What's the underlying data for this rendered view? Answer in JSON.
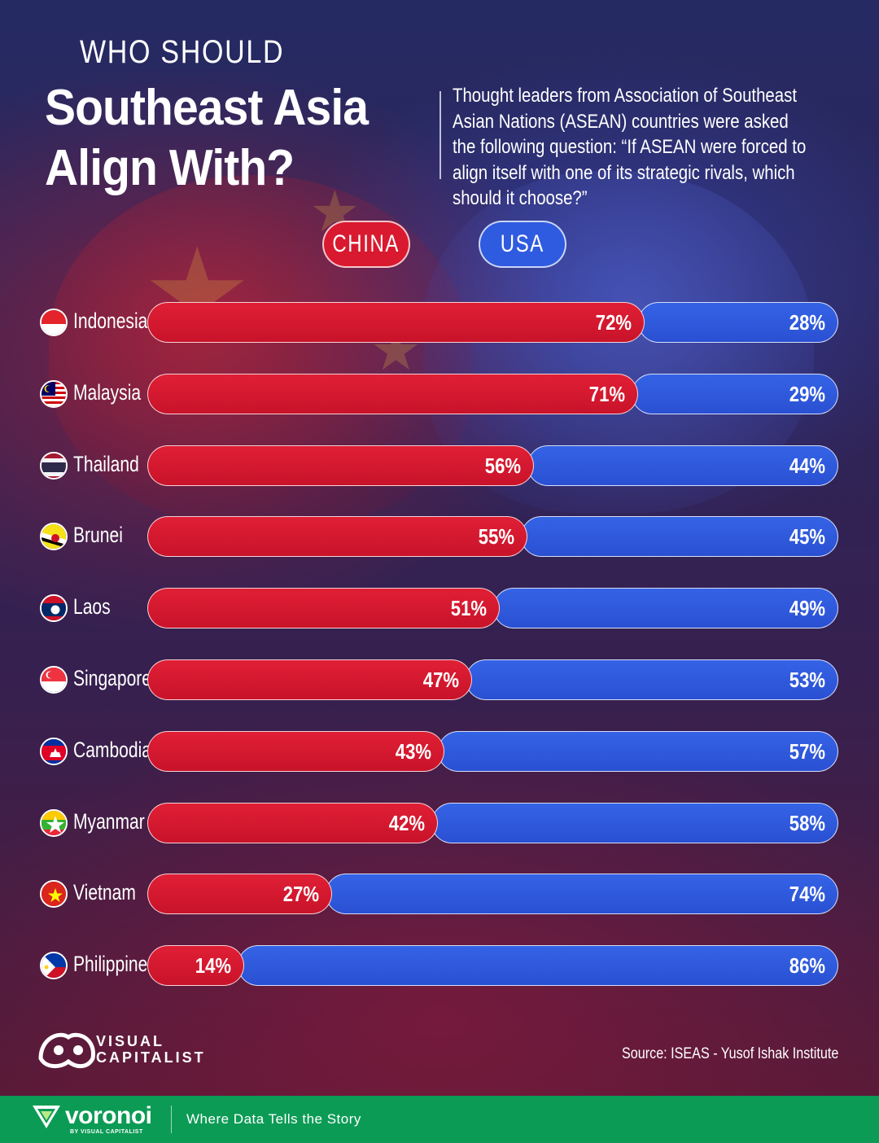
{
  "title": {
    "small": "WHO SHOULD",
    "big": "Southeast Asia Align With?"
  },
  "description": "Thought leaders from Association of Southeast Asian Nations (ASEAN) countries were asked the following question: “If ASEAN were forced to align itself with one of its strategic rivals, which should it choose?”",
  "legend": {
    "china_label": "CHINA",
    "usa_label": "USA"
  },
  "colors": {
    "china": "#d9192f",
    "usa": "#2f5be0",
    "footer": "#0c9b55"
  },
  "chart_data": {
    "type": "bar",
    "orientation": "horizontal-stacked",
    "categories": [
      "Indonesia",
      "Malaysia",
      "Thailand",
      "Brunei",
      "Laos",
      "Singapore",
      "Cambodia",
      "Myanmar",
      "Vietnam",
      "Philippines"
    ],
    "series": [
      {
        "name": "CHINA",
        "values": [
          72,
          71,
          56,
          55,
          51,
          47,
          43,
          42,
          27,
          14
        ],
        "labels": [
          "72%",
          "71%",
          "56%",
          "55%",
          "51%",
          "47%",
          "43%",
          "42%",
          "27%",
          "14%"
        ]
      },
      {
        "name": "USA",
        "values": [
          28,
          29,
          44,
          45,
          49,
          53,
          57,
          58,
          74,
          86
        ],
        "labels": [
          "28%",
          "29%",
          "44%",
          "45%",
          "49%",
          "53%",
          "57%",
          "58%",
          "74%",
          "86%"
        ]
      }
    ],
    "unit": "%",
    "xlim": [
      0,
      100
    ],
    "legend_position": "top-center",
    "grid": false
  },
  "flags": [
    "indonesia-flag-icon",
    "malaysia-flag-icon",
    "thailand-flag-icon",
    "brunei-flag-icon",
    "laos-flag-icon",
    "singapore-flag-icon",
    "cambodia-flag-icon",
    "myanmar-flag-icon",
    "vietnam-flag-icon",
    "philippines-flag-icon"
  ],
  "brand": {
    "logo_line1": "VISUAL",
    "logo_line2": "CAPITALIST",
    "source": "Source: ISEAS - Yusof Ishak Institute"
  },
  "footer": {
    "voronoi": "voronoi",
    "voronoi_sub": "BY VISUAL CAPITALIST",
    "tagline": "Where Data Tells the Story"
  }
}
